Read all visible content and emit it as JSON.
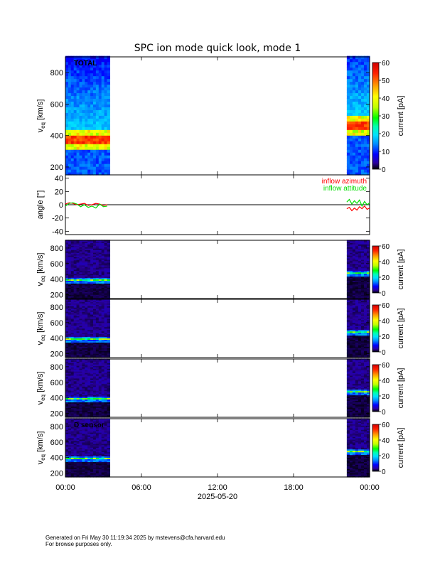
{
  "title": "SPC ion mode quick look, mode 1",
  "footer": {
    "line1": "Generated on Fri May 30 11:19:34 2025 by mstevens@cfa.harvard.edu",
    "line2": "For browse purposes only."
  },
  "x_axis": {
    "label": "2025-05-20",
    "ticks": [
      "00:00",
      "06:00",
      "12:00",
      "18:00",
      "00:00"
    ],
    "range_hours": [
      0,
      24
    ]
  },
  "colors": {
    "line_azimuth": "#ff0000",
    "line_altitude": "#00dd00",
    "black": "#000000"
  },
  "chart_data": [
    {
      "type": "heatmap",
      "panel": "total",
      "label": "TOTAL",
      "ylabel": "v",
      "ylabel_sub": "eq",
      "ylabel_unit": "[km/s]",
      "ylim": [
        150,
        900
      ],
      "yticks": [
        200,
        400,
        600,
        800
      ],
      "colorbar_label": "current [pA]",
      "colorbar_ticks": [
        0,
        10,
        20,
        30,
        40,
        50,
        60
      ],
      "data_intervals_hours": [
        [
          0,
          3.5
        ],
        [
          22.2,
          24
        ]
      ],
      "peak_speed_kms": [
        380,
        470
      ]
    },
    {
      "type": "line",
      "panel": "angle",
      "ylabel": "angle [°]",
      "ylim": [
        -45,
        45
      ],
      "yticks": [
        -40,
        -20,
        0,
        20,
        40
      ],
      "series": [
        {
          "name": "inflow azimuth",
          "color": "#ff0000",
          "x": [
            0.0,
            0.3,
            0.6,
            0.9,
            1.2,
            1.5,
            1.8,
            2.1,
            2.4,
            2.7,
            3.0,
            3.3,
            22.2,
            22.4,
            22.6,
            22.8,
            23.0,
            23.2,
            23.4,
            23.6,
            23.8,
            24.0
          ],
          "y": [
            1,
            3,
            2,
            0,
            1,
            2,
            -1,
            0,
            2,
            1,
            -1,
            0,
            -6,
            -4,
            -9,
            -5,
            -8,
            -3,
            -6,
            -2,
            -7,
            -5
          ]
        },
        {
          "name": "inflow attitude",
          "color": "#00dd00",
          "x": [
            0.0,
            0.3,
            0.6,
            0.9,
            1.2,
            1.5,
            1.8,
            2.1,
            2.4,
            2.7,
            3.0,
            3.3,
            22.2,
            22.4,
            22.6,
            22.8,
            23.0,
            23.2,
            23.4,
            23.6,
            23.8,
            24.0
          ],
          "y": [
            -2,
            2,
            3,
            1,
            -3,
            0,
            -4,
            -2,
            -5,
            1,
            -3,
            -2,
            4,
            8,
            1,
            6,
            2,
            7,
            -2,
            5,
            0,
            3
          ]
        }
      ]
    },
    {
      "type": "heatmap",
      "panel": "sensor-a",
      "label": "",
      "ylabel": "v",
      "ylabel_sub": "eq",
      "ylabel_unit": "[km/s]",
      "ylim": [
        150,
        900
      ],
      "yticks": [
        200,
        400,
        600,
        800
      ],
      "colorbar_label": "current [pA]",
      "colorbar_ticks": [
        0,
        20,
        40,
        60
      ],
      "data_intervals_hours": [
        [
          0,
          3.5
        ],
        [
          22.2,
          24
        ]
      ]
    },
    {
      "type": "heatmap",
      "panel": "sensor-b",
      "label": "",
      "ylabel": "v",
      "ylabel_sub": "eq",
      "ylabel_unit": "[km/s]",
      "ylim": [
        150,
        900
      ],
      "yticks": [
        200,
        400,
        600,
        800
      ],
      "colorbar_label": "current [pA]",
      "colorbar_ticks": [
        0,
        20,
        40,
        60
      ],
      "data_intervals_hours": [
        [
          0,
          3.5
        ],
        [
          22.2,
          24
        ]
      ]
    },
    {
      "type": "heatmap",
      "panel": "sensor-c",
      "label": "",
      "ylabel": "v",
      "ylabel_sub": "eq",
      "ylabel_unit": "[km/s]",
      "ylim": [
        150,
        900
      ],
      "yticks": [
        200,
        400,
        600,
        800
      ],
      "colorbar_label": "current [pA]",
      "colorbar_ticks": [
        0,
        20,
        40,
        60
      ],
      "data_intervals_hours": [
        [
          0,
          3.5
        ],
        [
          22.2,
          24
        ]
      ]
    },
    {
      "type": "heatmap",
      "panel": "sensor-d",
      "label": "D sensor",
      "ylabel": "v",
      "ylabel_sub": "eq",
      "ylabel_unit": "[km/s]",
      "ylim": [
        150,
        900
      ],
      "yticks": [
        200,
        400,
        600,
        800
      ],
      "colorbar_label": "current [pA]",
      "colorbar_ticks": [
        0,
        20,
        40,
        60
      ],
      "data_intervals_hours": [
        [
          0,
          3.5
        ],
        [
          22.2,
          24
        ]
      ]
    }
  ]
}
